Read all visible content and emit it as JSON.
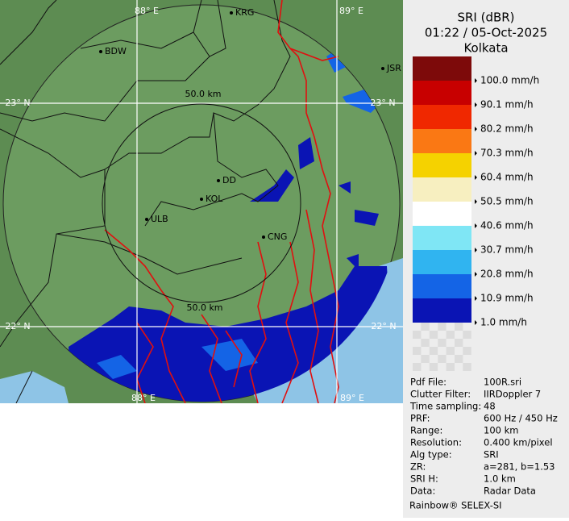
{
  "map": {
    "grid_labels": [
      "88° E",
      "89° E",
      "23° N",
      "23° N",
      "22° N",
      "22° N",
      "88° E",
      "89° E"
    ],
    "ring_labels": [
      "50.0 km",
      "50.0 km"
    ],
    "cities": [
      "KRG",
      "BDW",
      "JSR",
      "DD",
      "KOL",
      "ULB",
      "CNG"
    ]
  },
  "legend": {
    "title": [
      "SRI (dBR)",
      "01:22 / 05-Oct-2025",
      "Kolkata"
    ],
    "entries": [
      {
        "label": "100.0 mm/h",
        "color": "#7d0a0a"
      },
      {
        "label": "90.1 mm/h",
        "color": "#c80000"
      },
      {
        "label": "80.2 mm/h",
        "color": "#f02800"
      },
      {
        "label": "70.3 mm/h",
        "color": "#fa7814"
      },
      {
        "label": "60.4 mm/h",
        "color": "#f5d200"
      },
      {
        "label": "50.5 mm/h",
        "color": "#f7efc0"
      },
      {
        "label": "40.6 mm/h",
        "color": "#ffffff"
      },
      {
        "label": "30.7 mm/h",
        "color": "#7fe6f5"
      },
      {
        "label": "20.8 mm/h",
        "color": "#30b4f0"
      },
      {
        "label": "10.9 mm/h",
        "color": "#1464e6"
      },
      {
        "label": "1.0 mm/h",
        "color": "#0a14b4"
      }
    ]
  },
  "info": {
    "rows": [
      [
        "Pdf File:",
        "100R.sri"
      ],
      [
        "Clutter Filter:",
        "IIRDoppler 7"
      ],
      [
        "Time sampling:",
        "48"
      ],
      [
        "PRF:",
        "600 Hz / 450 Hz"
      ],
      [
        "Range:",
        "100 km"
      ],
      [
        "Resolution:",
        "0.400 km/pixel"
      ],
      [
        "Alg type:",
        "SRI"
      ],
      [
        "ZR:",
        "a=281, b=1.53"
      ],
      [
        "SRI H:",
        "1.0 km"
      ],
      [
        "Data:",
        "Radar Data"
      ]
    ],
    "footer": "Rainbow® SELEX-SI"
  }
}
